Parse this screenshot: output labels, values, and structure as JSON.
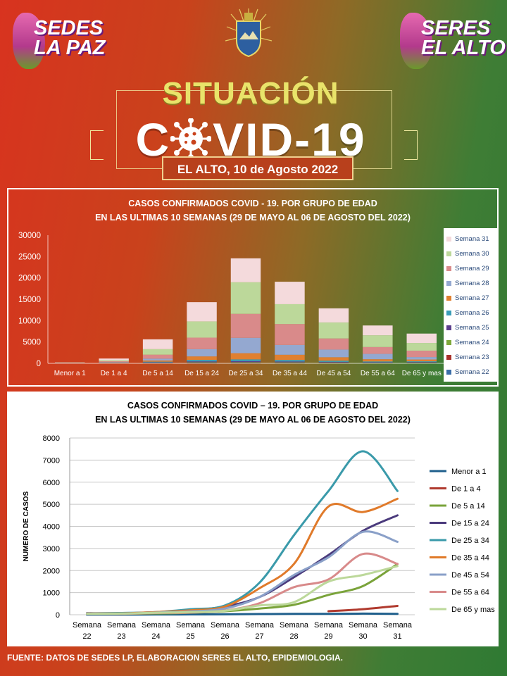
{
  "header": {
    "left_logo_line1": "SEDES",
    "left_logo_line2": "LA PAZ",
    "right_logo_line1": "SERES",
    "right_logo_line2": "EL ALTO",
    "title_top": "SITUACIÓN",
    "title_main_left": "C",
    "title_main_right": "VID-19",
    "date": "EL ALTO, 10 de Agosto 2022"
  },
  "chart1": {
    "title_line1": "CASOS CONFIRMADOS COVID - 19. POR GRUPO DE EDAD",
    "title_line2": "EN LAS ULTIMAS 10 SEMANAS (29 DE MAYO AL 06 DE AGOSTO DEL 2022)"
  },
  "chart2": {
    "title_line1": "CASOS CONFIRMADOS COVID – 19. POR GRUPO DE EDAD",
    "title_line2": "EN LAS ULTIMAS 10 SEMANAS (29 DE MAYO AL 06 DE AGOSTO DEL 2022)"
  },
  "footer": "FUENTE: DATOS DE SEDES LP, ELABORACION SERES EL ALTO, EPIDEMIOLOGIA.",
  "chart_data": [
    {
      "type": "bar",
      "stacked": true,
      "categories": [
        "Menor a 1",
        "De 1 a 4",
        "De 5 a 14",
        "De 15 a 24",
        "De 25 a 34",
        "De 35 a 44",
        "De 45 a 54",
        "De 55 a 64",
        "De 65 y mas"
      ],
      "ylim": [
        0,
        30000
      ],
      "yticks": [
        0,
        5000,
        10000,
        15000,
        20000,
        25000,
        30000
      ],
      "legend_position": "right",
      "series": [
        {
          "name": "Semana 22",
          "color": "#3b6ea8",
          "values": [
            5,
            10,
            40,
            70,
            60,
            55,
            45,
            35,
            40
          ]
        },
        {
          "name": "Semana 23",
          "color": "#a8322c",
          "values": [
            5,
            10,
            40,
            70,
            80,
            60,
            50,
            40,
            50
          ]
        },
        {
          "name": "Semana 24",
          "color": "#7ea83a",
          "values": [
            10,
            20,
            60,
            110,
            120,
            120,
            100,
            80,
            90
          ]
        },
        {
          "name": "Semana 25",
          "color": "#5b3f8c",
          "values": [
            15,
            30,
            90,
            200,
            250,
            200,
            150,
            100,
            120
          ]
        },
        {
          "name": "Semana 26",
          "color": "#3a9db8",
          "values": [
            20,
            50,
            160,
            370,
            420,
            370,
            280,
            190,
            180
          ]
        },
        {
          "name": "Semana 27",
          "color": "#e08030",
          "values": [
            30,
            80,
            280,
            800,
            1450,
            1200,
            800,
            520,
            420
          ]
        },
        {
          "name": "Semana 28",
          "color": "#94a8d0",
          "values": [
            40,
            120,
            450,
            1700,
            3600,
            2300,
            1800,
            1250,
            570
          ]
        },
        {
          "name": "Semana 29",
          "color": "#d98a8a",
          "values": [
            40,
            160,
            900,
            2700,
            5600,
            4900,
            2600,
            1600,
            1500
          ]
        },
        {
          "name": "Semana 30",
          "color": "#bcd89a",
          "values": [
            50,
            250,
            1300,
            3800,
            7400,
            4650,
            3750,
            2750,
            1800
          ]
        },
        {
          "name": "Semana 31",
          "color": "#f4dadc",
          "values": [
            40,
            400,
            2300,
            4500,
            5600,
            5250,
            3300,
            2300,
            2200
          ]
        }
      ]
    },
    {
      "type": "line",
      "x": [
        "Semana 22",
        "Semana 23",
        "Semana 24",
        "Semana 25",
        "Semana 26",
        "Semana 27",
        "Semana 28",
        "Semana 29",
        "Semana 30",
        "Semana 31"
      ],
      "ylabel": "NUMERO DE CASOS",
      "ylim": [
        0,
        8000
      ],
      "yticks": [
        0,
        1000,
        2000,
        3000,
        4000,
        5000,
        6000,
        7000,
        8000
      ],
      "grid": true,
      "legend_position": "right",
      "series": [
        {
          "name": "Menor a 1",
          "color": "#1f5f8c",
          "values": [
            5,
            5,
            10,
            15,
            20,
            30,
            40,
            40,
            50,
            40
          ]
        },
        {
          "name": "De 1 a 4",
          "color": "#b03a2e",
          "values": [
            null,
            null,
            null,
            null,
            null,
            null,
            null,
            160,
            250,
            400
          ]
        },
        {
          "name": "De 5 a 14",
          "color": "#7aa33a",
          "values": [
            40,
            40,
            60,
            90,
            160,
            280,
            450,
            900,
            1300,
            2300
          ]
        },
        {
          "name": "De 15 a 24",
          "color": "#4a3a7c",
          "values": [
            70,
            70,
            110,
            200,
            370,
            800,
            1700,
            2700,
            3800,
            4500
          ]
        },
        {
          "name": "De 25 a 34",
          "color": "#3a9aaa",
          "values": [
            60,
            80,
            120,
            250,
            420,
            1450,
            3600,
            5600,
            7400,
            5600
          ]
        },
        {
          "name": "De 35 a 44",
          "color": "#e07a2a",
          "values": [
            55,
            60,
            120,
            200,
            370,
            1200,
            2300,
            4900,
            4650,
            5250
          ]
        },
        {
          "name": "De 45 a 54",
          "color": "#8aa0c8",
          "values": [
            45,
            50,
            100,
            150,
            280,
            800,
            1800,
            2600,
            3750,
            3300
          ]
        },
        {
          "name": "De 55 a 64",
          "color": "#d88a8a",
          "values": [
            35,
            40,
            80,
            100,
            190,
            520,
            1250,
            1600,
            2750,
            2300
          ]
        },
        {
          "name": "De 65 y mas",
          "color": "#bcd89a",
          "values": [
            40,
            50,
            90,
            120,
            180,
            420,
            570,
            1500,
            1800,
            2200
          ]
        }
      ]
    }
  ]
}
